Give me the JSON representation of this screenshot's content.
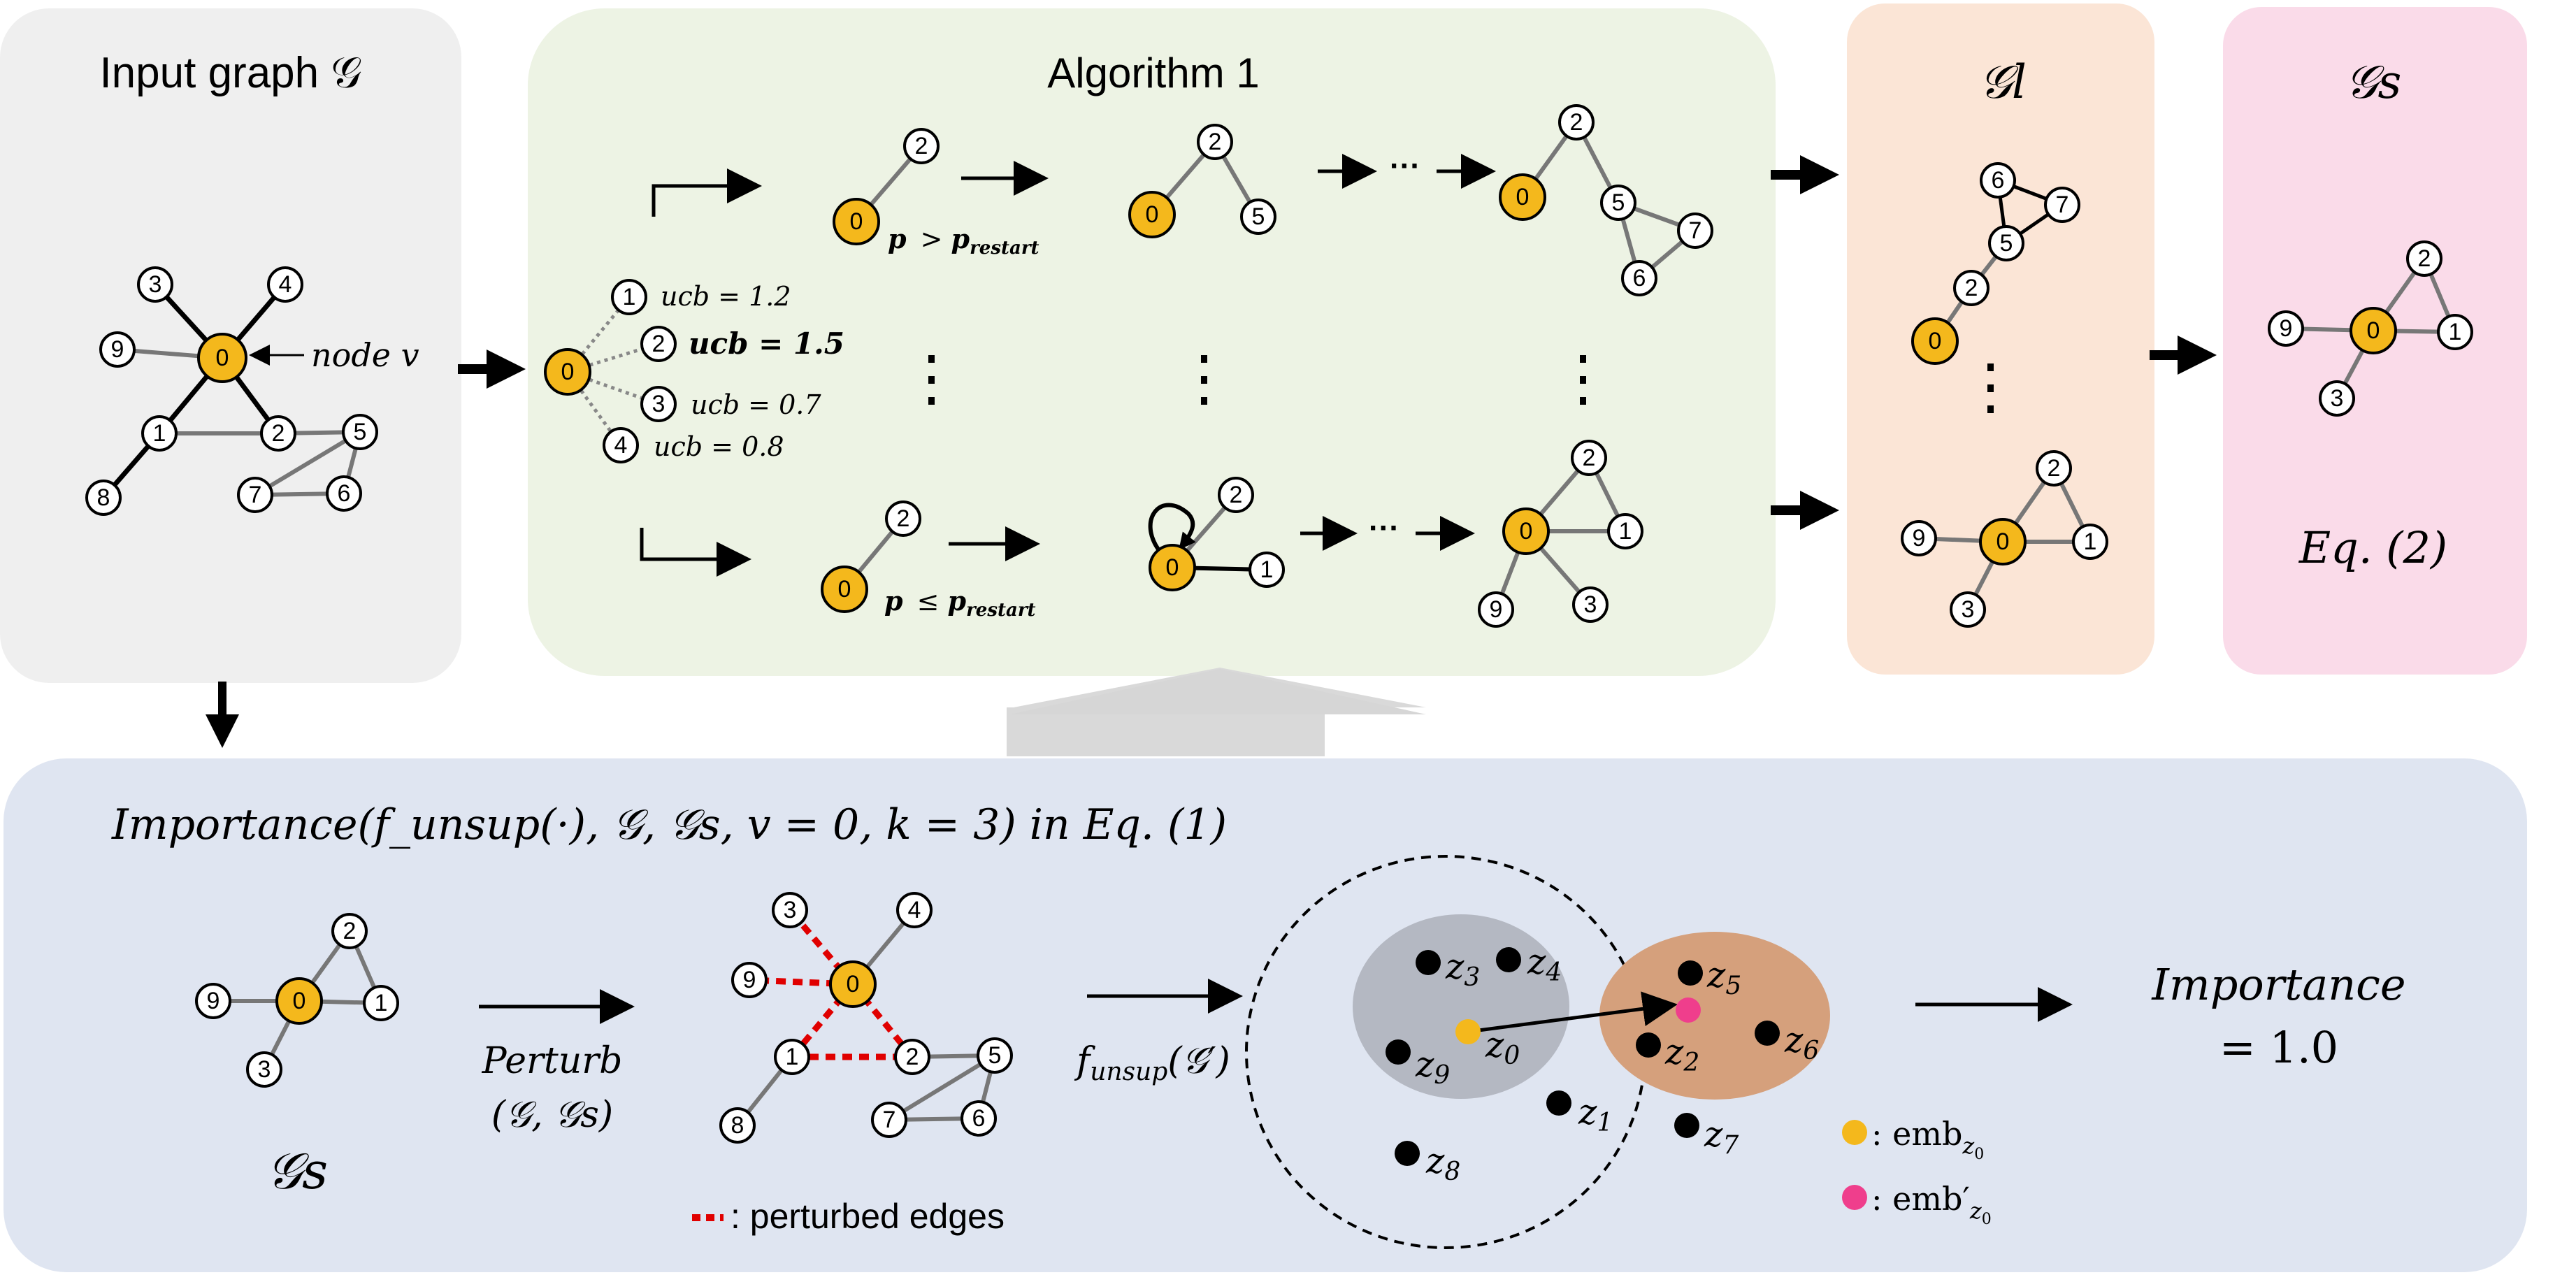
{
  "panels": {
    "input_title": "Input graph 𝒢",
    "node_v_label": "node v",
    "algorithm_title": "Algorithm 1",
    "gl_title": "𝒢l",
    "gs_title": "𝒢s",
    "eq2_label": "Eq. (2)"
  },
  "algorithm": {
    "ucb_entries": [
      {
        "node": "1",
        "label": "ucb = 1.2",
        "bold": false
      },
      {
        "node": "2",
        "label": "ucb = 1.5",
        "bold": true
      },
      {
        "node": "3",
        "label": "ucb = 0.7",
        "bold": false
      },
      {
        "node": "4",
        "label": "ucb = 0.8",
        "bold": false
      }
    ],
    "top_condition": "p > p_restart",
    "bottom_condition": "p ≤ p_restart",
    "ellipsis": "···"
  },
  "importance": {
    "equation": "Importance(f_unsup(·), 𝒢, 𝒢s, v = 0, k = 3) in Eq. (1)",
    "gs_label": "𝒢s",
    "perturb_label_line1": "Perturb",
    "perturb_label_line2": "(𝒢, 𝒢s)",
    "perturbed_edges_legend": ": perturbed edges",
    "funsup_label": "f_unsup(𝒢′)",
    "embedding_points": [
      "z3",
      "z4",
      "z0",
      "z9",
      "z5",
      "z2",
      "z6",
      "z1",
      "z7",
      "z8"
    ],
    "emb_legend": ": emb",
    "emb_prime_legend": ": emb′",
    "result_line1": "Importance",
    "result_line2": "= 1.0"
  },
  "colors": {
    "gray_panel": "#efefef",
    "green_panel": "#edf3e4",
    "orange_panel": "#fbe5d6",
    "pink_panel": "#fadbe9",
    "blue_panel": "#dfe5f1",
    "highlight_node": "#f4b81c",
    "perturbed_edge": "#e00000",
    "embedding_prime": "#ef3e8c",
    "cluster_gray": "#b4b8c2",
    "cluster_orange": "#d5a07c"
  }
}
